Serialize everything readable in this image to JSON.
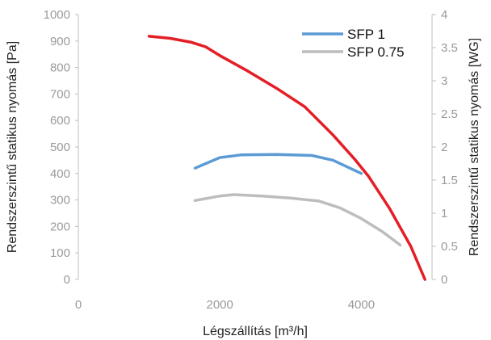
{
  "chart_data": {
    "type": "line",
    "xlabel": "Légszállítás [m³/h]",
    "ylabel": "Rendszerszintű statikus nyomás [Pa]",
    "y2label": "Rendszerszintű statikus nyomás [WG]",
    "xlim": [
      0,
      5000
    ],
    "ylim": [
      0,
      1000
    ],
    "y2lim": [
      0,
      4
    ],
    "x_ticks": [
      "0",
      "2000",
      "4000"
    ],
    "y_ticks": [
      "0",
      "100",
      "200",
      "300",
      "400",
      "500",
      "600",
      "700",
      "800",
      "900",
      "1000"
    ],
    "y2_ticks": [
      "0",
      "0.5",
      "1",
      "1.5",
      "2",
      "2.5",
      "3",
      "3.5",
      "4"
    ],
    "grid": false,
    "legend_position": "top-right",
    "series": [
      {
        "name": "",
        "color": "#e41e26",
        "x": [
          1000,
          1300,
          1600,
          1800,
          2000,
          2400,
          2800,
          3200,
          3600,
          3900,
          4100,
          4400,
          4700,
          4900
        ],
        "y": [
          918,
          910,
          895,
          878,
          845,
          786,
          722,
          652,
          545,
          456,
          390,
          268,
          125,
          0
        ]
      },
      {
        "name": "SFP 1",
        "color": "#5b9bd5",
        "x": [
          1650,
          2000,
          2300,
          2800,
          3300,
          3600,
          4000
        ],
        "y": [
          420,
          460,
          470,
          472,
          468,
          450,
          400
        ]
      },
      {
        "name": "SFP 0.75",
        "color": "#bdbdbd",
        "x": [
          1650,
          2000,
          2200,
          2600,
          3000,
          3400,
          3700,
          4000,
          4300,
          4550
        ],
        "y": [
          298,
          315,
          320,
          315,
          307,
          296,
          270,
          230,
          180,
          130
        ]
      }
    ]
  }
}
